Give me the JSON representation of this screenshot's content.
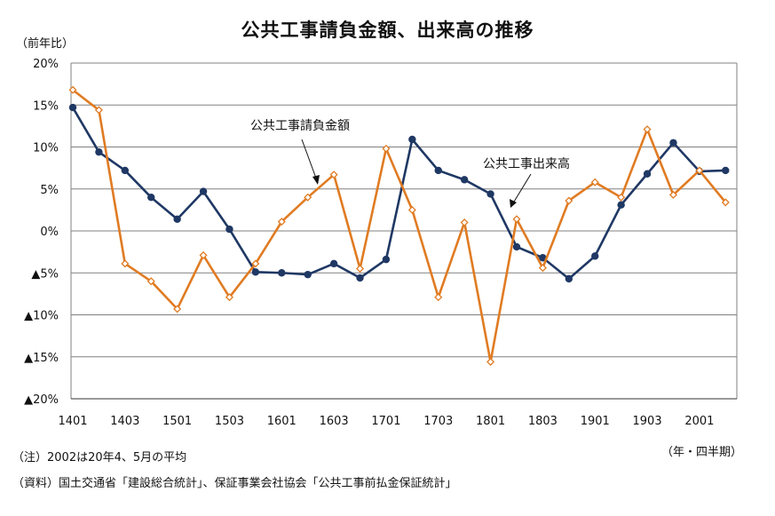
{
  "title": "公共工事請負金額、出来高の推移",
  "y_unit": "（前年比）",
  "x_unit": "（年・四半期）",
  "notes": [
    "（注）2002は20年4、5月の平均",
    "（資料）国土交通省「建設総合統計」、保証事業会社協会「公共工事前払金保証統計」"
  ],
  "colors": {
    "contract": "#e07b22",
    "output": "#1f3864",
    "grid": "#808080"
  },
  "chart_data": {
    "type": "line",
    "title": "公共工事請負金額、出来高の推移",
    "ylabel": "（前年比）",
    "xlabel": "（年・四半期）",
    "ylim": [
      -20,
      20
    ],
    "y_ticks": [
      20,
      15,
      10,
      5,
      0,
      -5,
      -10,
      -15,
      -20
    ],
    "y_tick_labels": [
      "20%",
      "15%",
      "10%",
      "5%",
      "0%",
      "▲5%",
      "▲10%",
      "▲15%",
      "▲20%"
    ],
    "x": [
      "1401",
      "1402",
      "1403",
      "1404",
      "1501",
      "1502",
      "1503",
      "1504",
      "1601",
      "1602",
      "1603",
      "1604",
      "1701",
      "1702",
      "1703",
      "1704",
      "1801",
      "1802",
      "1803",
      "1804",
      "1901",
      "1902",
      "1903",
      "1904",
      "2001",
      "2002"
    ],
    "x_tick_labels": [
      "1401",
      "1403",
      "1501",
      "1503",
      "1601",
      "1603",
      "1701",
      "1703",
      "1801",
      "1803",
      "1901",
      "1903",
      "2001"
    ],
    "grid": true,
    "series": [
      {
        "name": "公共工事請負金額",
        "color": "#e07b22",
        "marker": "diamond-open",
        "values": [
          16.8,
          14.4,
          -3.9,
          -6.0,
          -9.3,
          -2.9,
          -7.9,
          -3.9,
          1.1,
          4.0,
          6.7,
          -4.5,
          9.8,
          2.5,
          -7.9,
          1.0,
          -15.6,
          1.4,
          -4.4,
          3.6,
          5.8,
          4.0,
          12.1,
          4.3,
          7.2,
          3.4
        ]
      },
      {
        "name": "公共工事出来高",
        "color": "#1f3864",
        "marker": "circle",
        "values": [
          14.7,
          9.4,
          7.2,
          4.0,
          1.4,
          4.7,
          0.2,
          -4.9,
          -5.0,
          -5.2,
          -3.9,
          -5.6,
          -3.4,
          10.9,
          7.2,
          6.1,
          4.4,
          -1.9,
          -3.2,
          -5.7,
          -3.0,
          3.1,
          6.8,
          10.5,
          7.1,
          7.2
        ]
      }
    ],
    "annotations": [
      {
        "text": "公共工事請負金額",
        "series": "公共工事請負金額"
      },
      {
        "text": "公共工事出来高",
        "series": "公共工事出来高"
      }
    ]
  }
}
